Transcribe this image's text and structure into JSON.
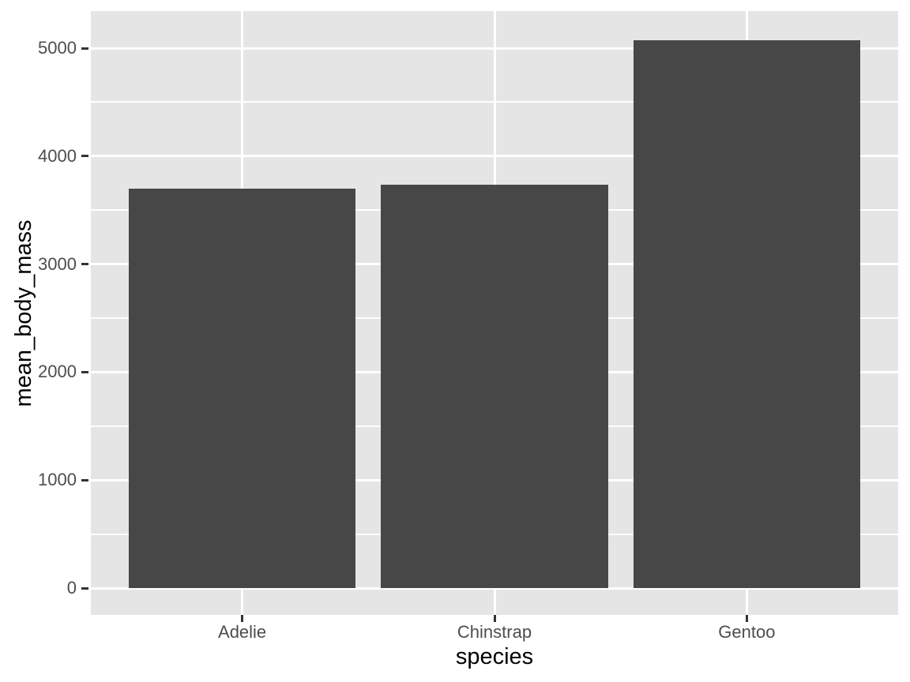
{
  "chart_data": {
    "type": "bar",
    "title": "",
    "categories": [
      "Adelie",
      "Chinstrap",
      "Gentoo"
    ],
    "values": [
      3701,
      3733,
      5076
    ],
    "xlabel": "species",
    "ylabel": "mean_body_mass",
    "y_major_ticks": [
      0,
      1000,
      2000,
      3000,
      4000,
      5000
    ],
    "y_minor_ticks": [
      500,
      1500,
      2500,
      3500,
      4500
    ],
    "ylim": [
      -254,
      5330
    ],
    "bar_width_fraction": 0.9,
    "grid": "on",
    "legend_position": "none",
    "style": "ggplot2-grey",
    "colors": {
      "bar_fill": "#474747",
      "panel_background": "#E5E5E5",
      "gridline": "#FFFFFF",
      "tick_label_text": "#4D4D4D",
      "axis_title_text": "#000000",
      "tick_mark": "#333333",
      "page_background": "#FFFFFF"
    }
  }
}
